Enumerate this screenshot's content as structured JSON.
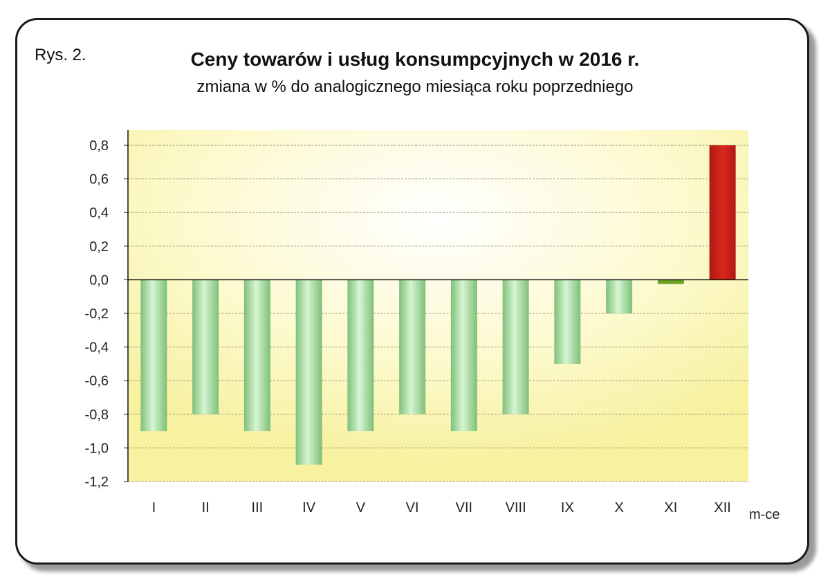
{
  "figure": {
    "label": "Rys. 2.",
    "title": "Ceny towarów i usług konsumpcyjnych w 2016 r.",
    "subtitle": "zmiana w % do analogicznego miesiąca roku poprzedniego"
  },
  "chart_data": {
    "type": "bar",
    "title": "Ceny towarów i usług konsumpcyjnych w 2016 r.",
    "subtitle": "zmiana w % do analogicznego miesiąca roku poprzedniego",
    "xlabel": "m-ce",
    "ylabel": "",
    "categories": [
      "I",
      "II",
      "III",
      "IV",
      "V",
      "VI",
      "VII",
      "VIII",
      "IX",
      "X",
      "XI",
      "XII"
    ],
    "values": [
      -0.9,
      -0.8,
      -0.9,
      -1.1,
      -0.9,
      -0.8,
      -0.9,
      -0.8,
      -0.5,
      -0.2,
      0.0,
      0.8
    ],
    "ylim": [
      -1.2,
      0.8
    ],
    "yticks": [
      0.8,
      0.6,
      0.4,
      0.2,
      0.0,
      -0.2,
      -0.4,
      -0.6,
      -0.8,
      -1.0,
      -1.2
    ],
    "ytick_labels": [
      "0,8",
      "0,6",
      "0,4",
      "0,2",
      "0,0",
      "-0,2",
      "-0,4",
      "-0,6",
      "-0,8",
      "-1,0",
      "-1,2"
    ],
    "grid": true,
    "colors": {
      "negative_bar": "#a9e3a4",
      "zero_bar": "#6aa321",
      "positive_bar": "#c8201a",
      "plot_background": "#fbf7b5",
      "gridline": "#9a9a7a"
    }
  }
}
